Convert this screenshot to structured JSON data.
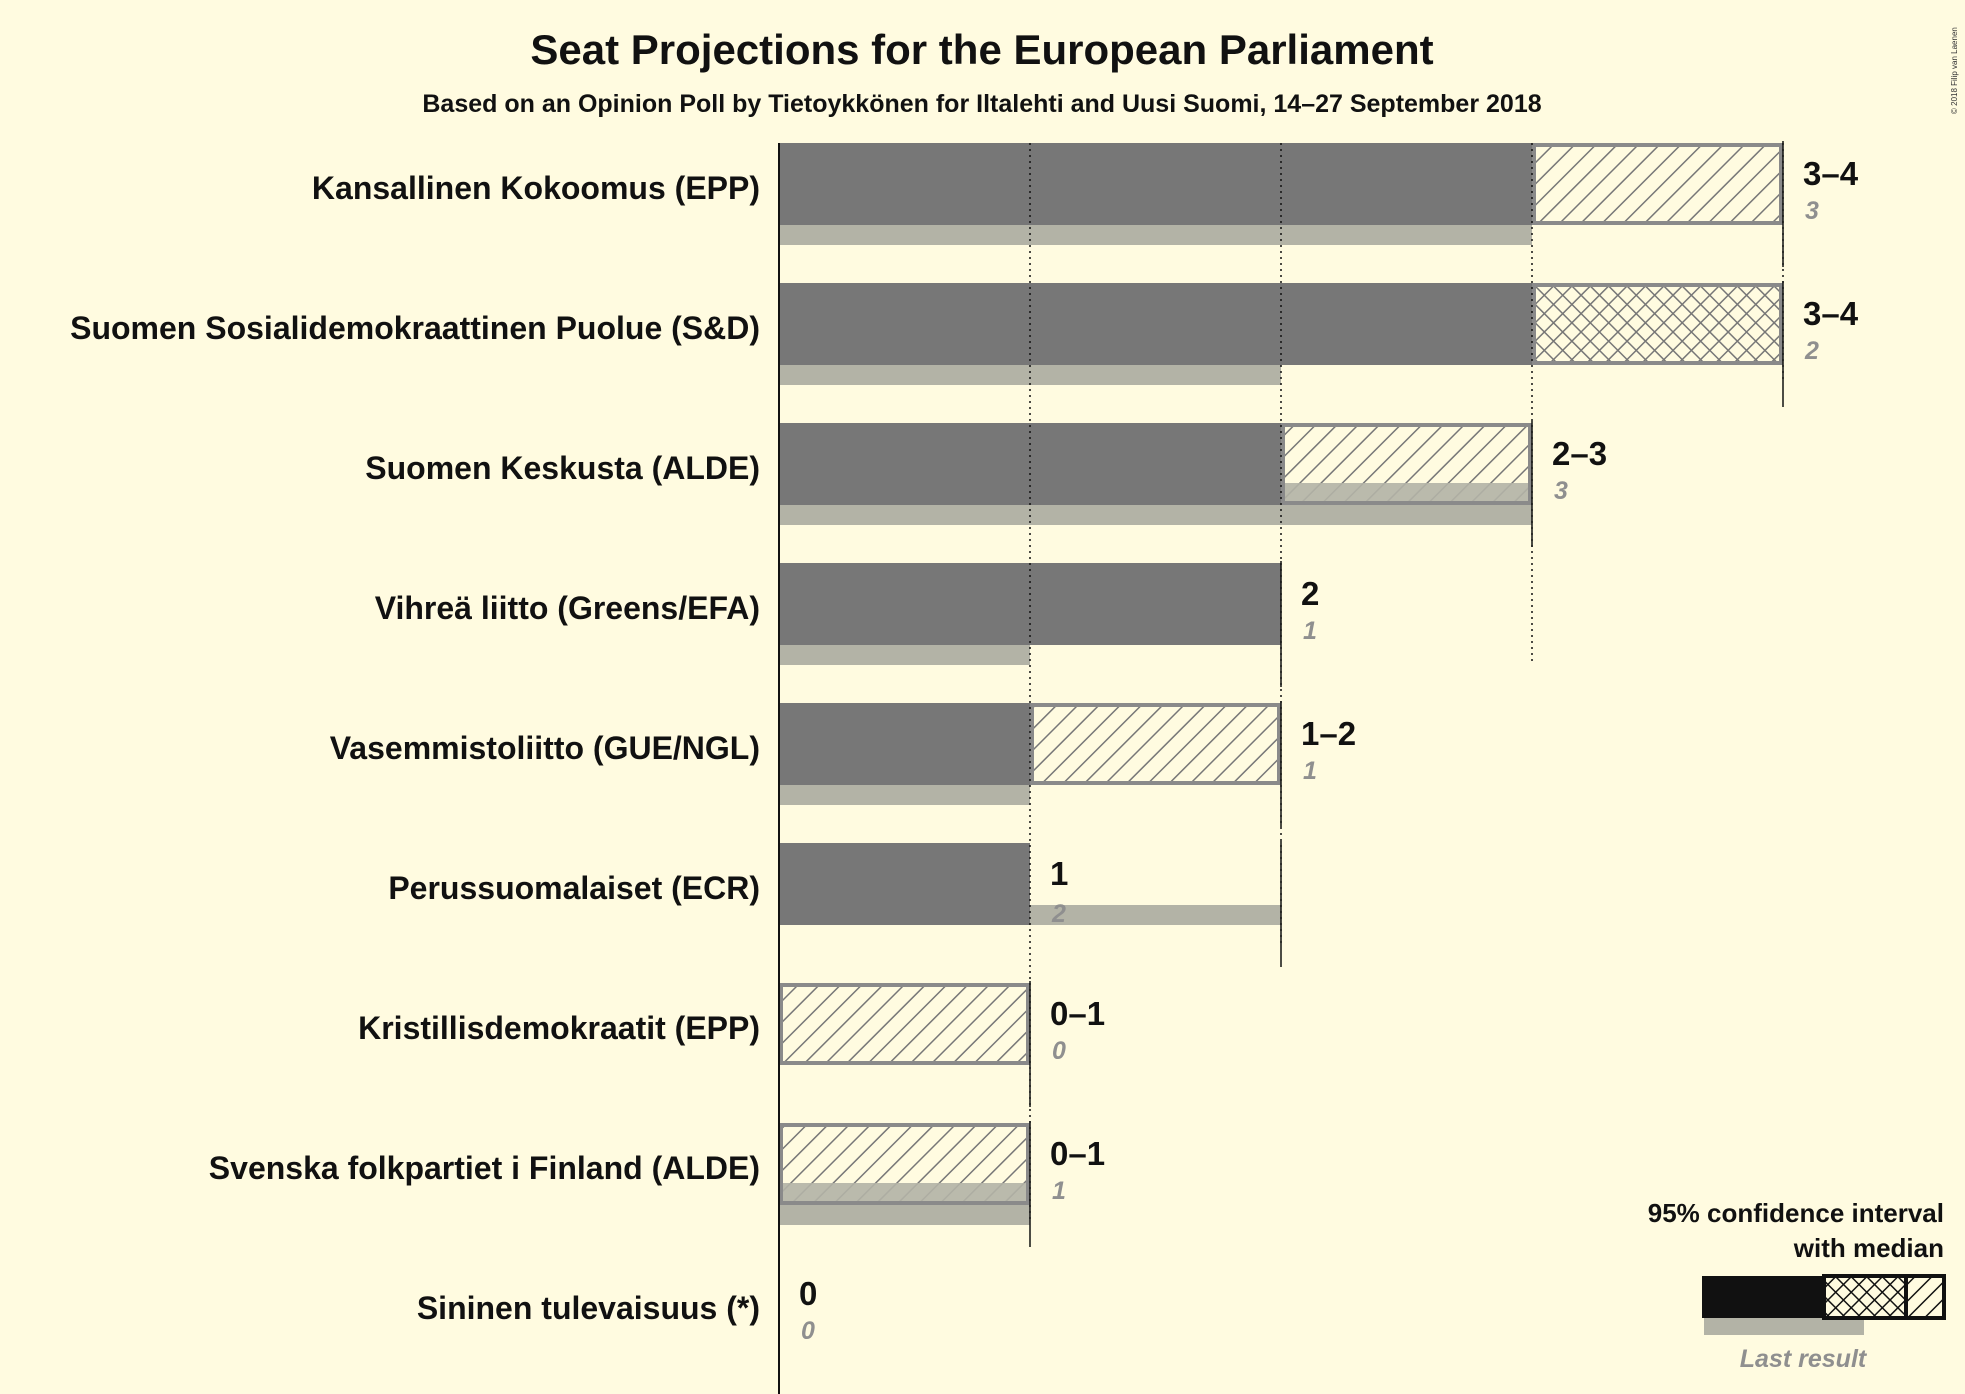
{
  "chart_data": {
    "type": "bar",
    "title": "Seat Projections for the European Parliament",
    "subtitle": "Based on an Opinion Poll by Tietoykkönen for Iltalehti and Uusi Suomi, 14–27 September 2018",
    "copyright": "© 2018 Filip van Laenen",
    "xlim": [
      0,
      4
    ],
    "parties": [
      {
        "name": "Kansallinen Kokoomus (EPP)",
        "low": 3,
        "high": 4,
        "median": 3,
        "last": 3,
        "label": "3–4",
        "last_label": "3",
        "pattern": "hatch"
      },
      {
        "name": "Suomen Sosialidemokraattinen Puolue (S&D)",
        "low": 3,
        "high": 4,
        "median": 4,
        "last": 2,
        "label": "3–4",
        "last_label": "2",
        "pattern": "cross"
      },
      {
        "name": "Suomen Keskusta (ALDE)",
        "low": 2,
        "high": 3,
        "median": 2,
        "last": 3,
        "label": "2–3",
        "last_label": "3",
        "pattern": "hatch"
      },
      {
        "name": "Vihreä liitto (Greens/EFA)",
        "low": 2,
        "high": 2,
        "median": 2,
        "last": 1,
        "label": "2",
        "last_label": "1",
        "pattern": "none"
      },
      {
        "name": "Vasemmistoliitto (GUE/NGL)",
        "low": 1,
        "high": 2,
        "median": 1,
        "last": 1,
        "label": "1–2",
        "last_label": "1",
        "pattern": "hatch"
      },
      {
        "name": "Perussuomalaiset (ECR)",
        "low": 1,
        "high": 1,
        "median": 1,
        "last": 2,
        "label": "1",
        "last_label": "2",
        "pattern": "none"
      },
      {
        "name": "Kristillisdemokraatit (EPP)",
        "low": 0,
        "high": 1,
        "median": 0,
        "last": 0,
        "label": "0–1",
        "last_label": "0",
        "pattern": "hatch"
      },
      {
        "name": "Svenska folkpartiet i Finland (ALDE)",
        "low": 0,
        "high": 1,
        "median": 0,
        "last": 1,
        "label": "0–1",
        "last_label": "1",
        "pattern": "hatch"
      },
      {
        "name": "Sininen tulevaisuus (*)",
        "low": 0,
        "high": 0,
        "median": 0,
        "last": 0,
        "label": "0",
        "last_label": "0",
        "pattern": "none"
      }
    ],
    "legend": {
      "title_line1": "95% confidence interval",
      "title_line2": "with median",
      "last_result": "Last result"
    },
    "colors": {
      "background": "#fffbe0",
      "bar": "#777777",
      "last_result": "#b3b3a6",
      "hatch_border": "#8a8a8a",
      "legend_bar": "#111111"
    }
  }
}
